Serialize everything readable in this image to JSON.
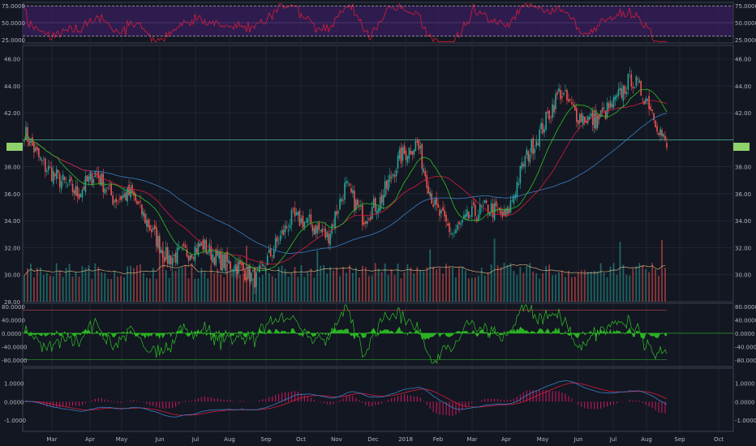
{
  "colors": {
    "background": "#131722",
    "grid": "#2a2e39",
    "border": "#4a4e59",
    "up": "#26a69a",
    "down": "#ef5350",
    "rsi_line": "#d81b3c",
    "rsi_band": "#3a1f5d",
    "ma_fast": "#2ec224",
    "ma_mid": "#d81b3c",
    "ma_slow": "#3a7fc4",
    "hline": "#5ad1b0",
    "price_badge": "#8fd16a",
    "macd_line": "#3a7fc4",
    "signal_line": "#d81b3c",
    "hist": "#c2185b",
    "osc_fill": "#2ec224"
  },
  "x_axis": {
    "labels": [
      "Mar",
      "Apr",
      "May",
      "Jun",
      "Jul",
      "Aug",
      "Sep",
      "Oct",
      "Nov",
      "Dec",
      "2018",
      "Feb",
      "Mar",
      "Apr",
      "May",
      "Jun",
      "Jul",
      "Aug",
      "Sep",
      "Oct"
    ]
  },
  "rsi_panel": {
    "ticks": [
      "75.0000",
      "50.0000",
      "25.0000"
    ],
    "right_ticks": [
      "75.0000",
      "50.0000",
      "25.0000"
    ]
  },
  "price_panel": {
    "ticks": [
      "46.00",
      "44.00",
      "42.00",
      "40.00",
      "38.00",
      "36.00",
      "34.00",
      "32.00",
      "30.00",
      "28.00"
    ],
    "right_ticks": [
      "46.00",
      "44.00",
      "42.00",
      "40.00",
      "38.00",
      "36.00",
      "34.00",
      "32.00",
      "30.00"
    ]
  },
  "osc_panel": {
    "ticks": [
      "80.0000",
      "40.0000",
      "0.0000",
      "-40.0000",
      "-80.0000"
    ],
    "right_ticks": [
      "80.0000",
      "40.0000",
      "0.0000",
      "-40.0000",
      "-80.0000"
    ]
  },
  "macd_panel": {
    "ticks": [
      "1.0000",
      "0.0000",
      "-1.0000"
    ],
    "right_ticks": [
      "1.0000",
      "0.0000",
      "-1.0000"
    ]
  },
  "chart_data": {
    "type": "candlestick",
    "x_range": [
      "Feb 2017",
      "Oct 2018"
    ],
    "price_ylim": [
      28,
      47
    ],
    "price_points": [
      [
        "Feb",
        40.6
      ],
      [
        "Mar",
        38.2
      ],
      [
        "Mar",
        37.0
      ],
      [
        "Apr",
        36.0
      ],
      [
        "Apr",
        37.6
      ],
      [
        "May",
        35.6
      ],
      [
        "May",
        36.0
      ],
      [
        "Jun",
        33.6
      ],
      [
        "Jun",
        31.2
      ],
      [
        "Jul",
        31.6
      ],
      [
        "Jul",
        32.2
      ],
      [
        "Aug",
        31.0
      ],
      [
        "Aug",
        30.6
      ],
      [
        "Sep",
        29.6
      ],
      [
        "Sep",
        32.0
      ],
      [
        "Oct",
        34.2
      ],
      [
        "Oct",
        33.8
      ],
      [
        "Nov",
        32.8
      ],
      [
        "Nov",
        36.6
      ],
      [
        "Dec",
        34.2
      ],
      [
        "Dec",
        35.6
      ],
      [
        "2018",
        38.6
      ],
      [
        "2018",
        39.8
      ],
      [
        "Feb",
        35.0
      ],
      [
        "Feb",
        33.0
      ],
      [
        "Mar",
        34.4
      ],
      [
        "Mar",
        35.0
      ],
      [
        "Apr",
        34.2
      ],
      [
        "Apr",
        38.4
      ],
      [
        "May",
        40.8
      ],
      [
        "May",
        43.6
      ],
      [
        "Jun",
        41.8
      ],
      [
        "Jun",
        41.4
      ],
      [
        "Jul",
        42.6
      ],
      [
        "Jul",
        44.6
      ],
      [
        "Aug",
        42.8
      ],
      [
        "Aug",
        39.4
      ]
    ],
    "volume_ylim": [
      0,
      10
    ],
    "rsi_ylim": [
      20,
      80
    ],
    "rsi_levels": [
      75,
      50,
      30
    ],
    "osc_ylim": [
      -100,
      90
    ],
    "macd_ylim": [
      -1.6,
      1.8
    ],
    "reference_price": 40.0
  }
}
